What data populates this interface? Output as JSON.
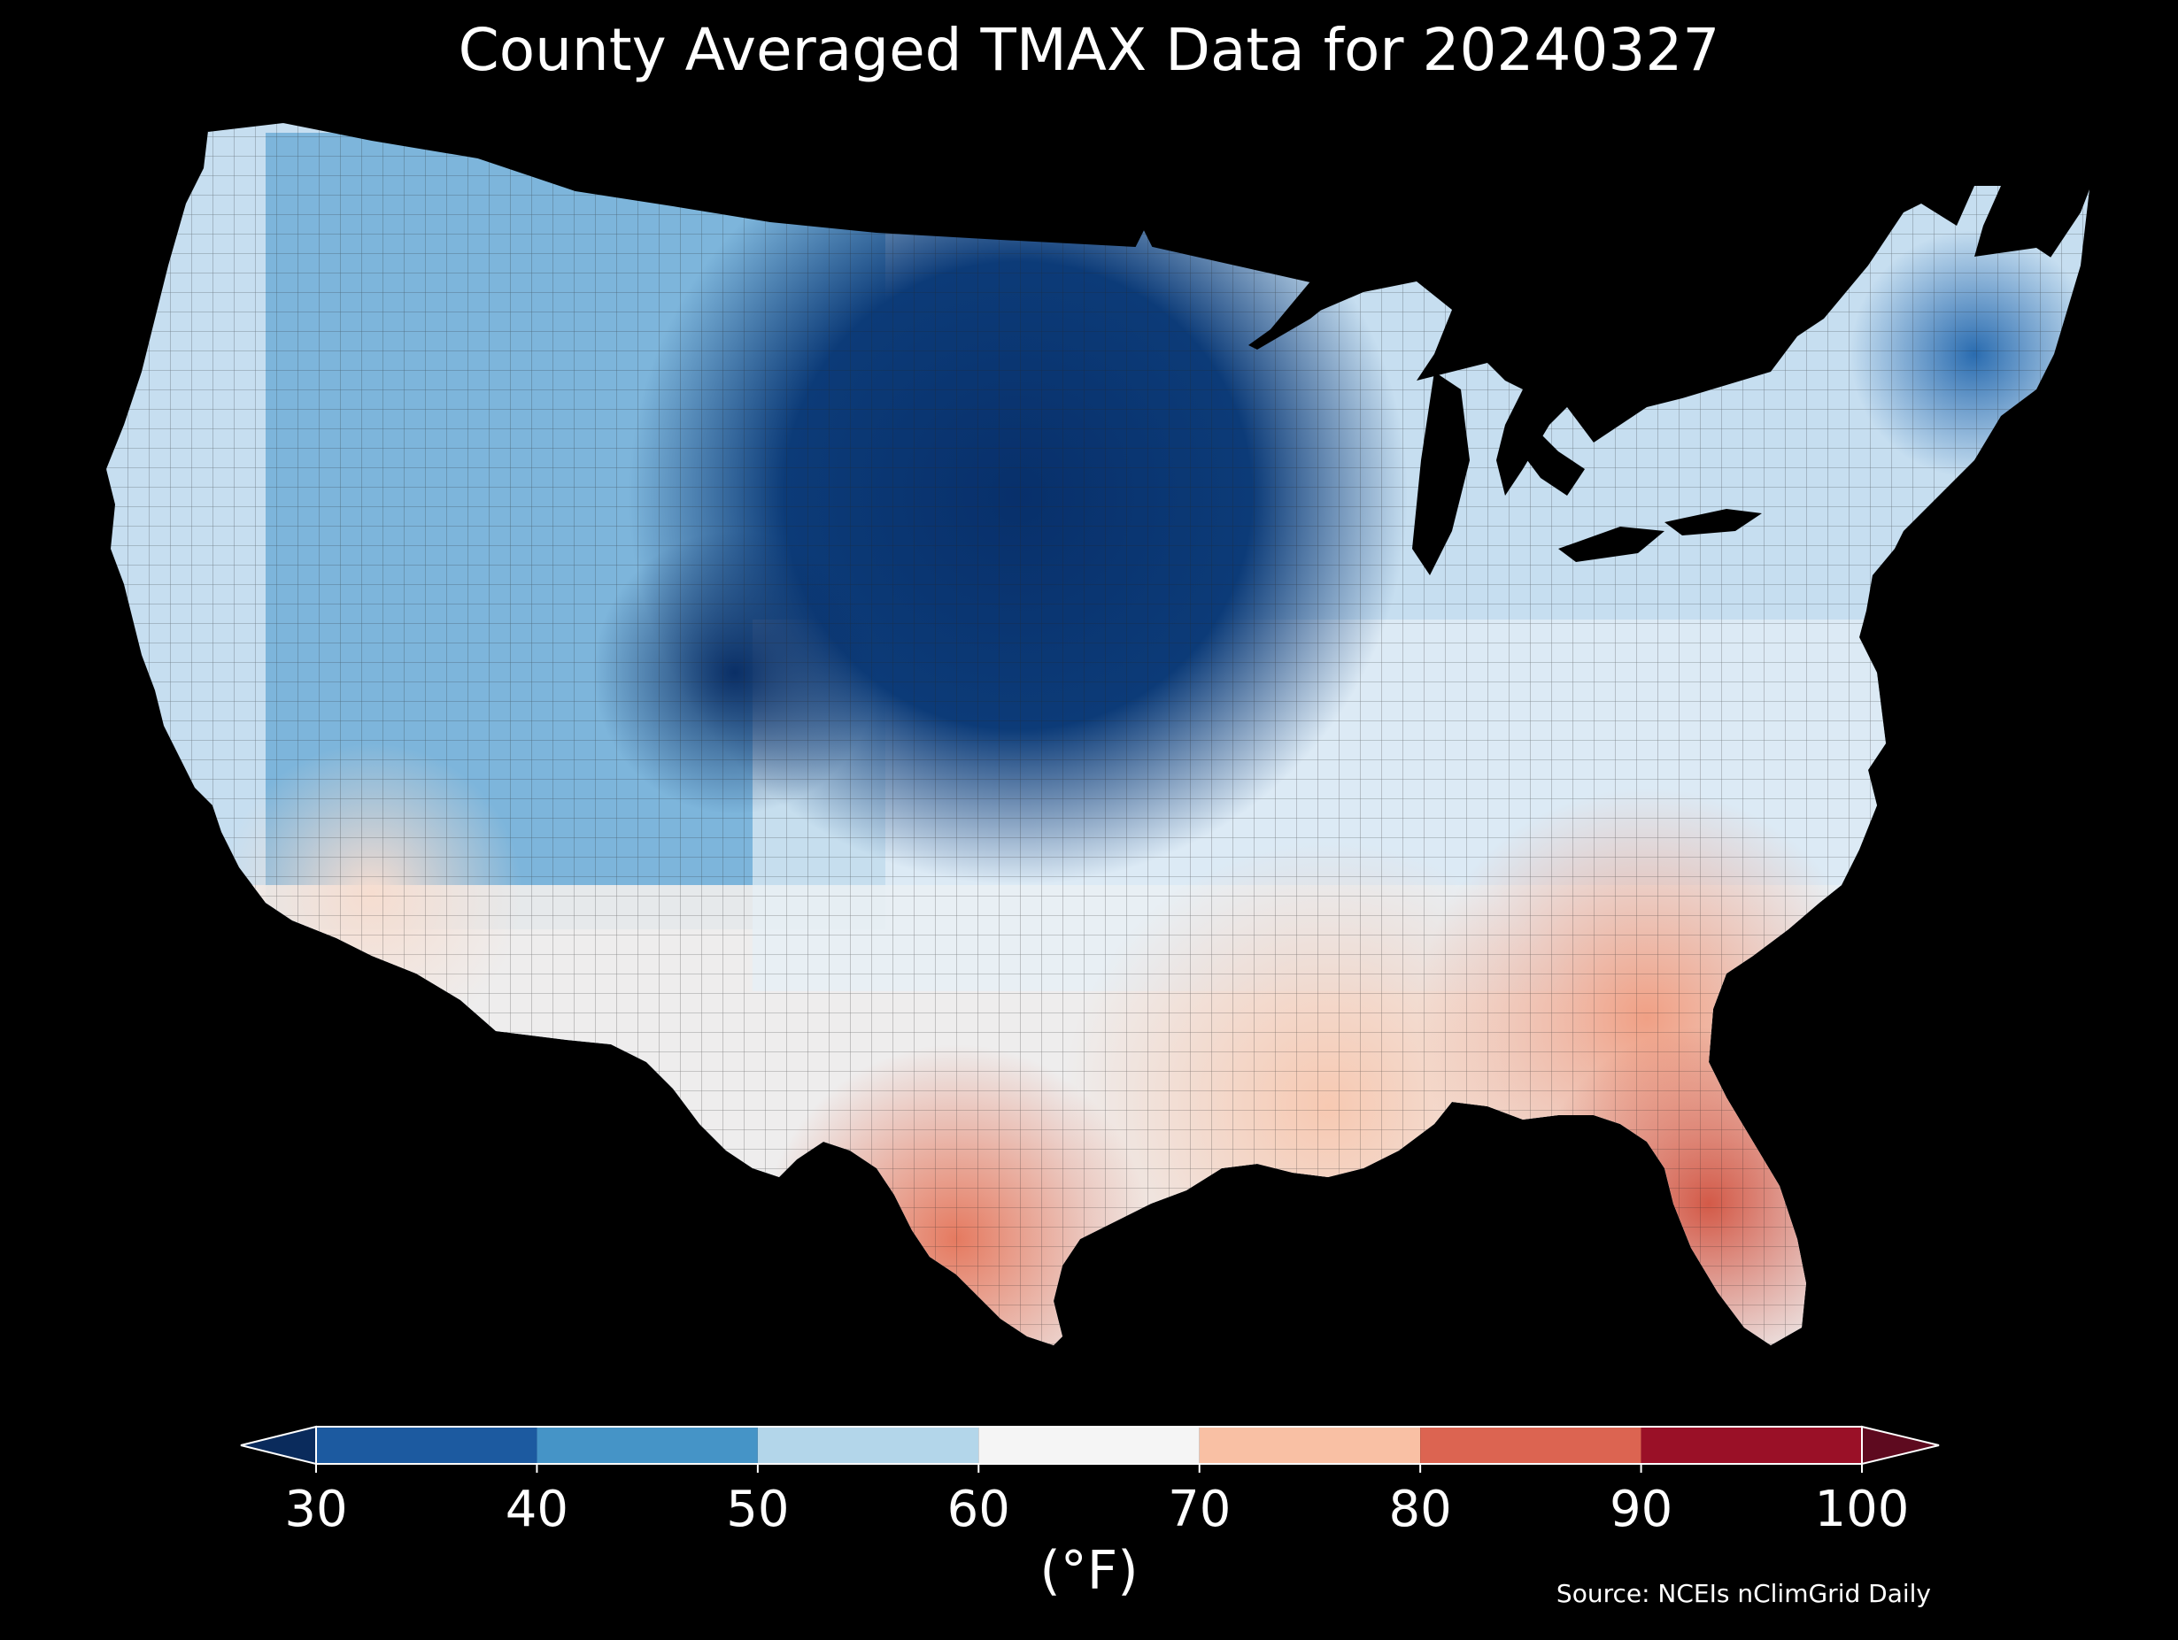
{
  "title": "County Averaged TMAX Data for 20240327",
  "colorbar": {
    "label": "(°F)",
    "ticks": [
      "30",
      "40",
      "50",
      "60",
      "70",
      "80",
      "90",
      "100"
    ],
    "bins": [
      {
        "from": 30,
        "to": 40,
        "color": "#1c5aa0"
      },
      {
        "from": 40,
        "to": 50,
        "color": "#4594c7"
      },
      {
        "from": 50,
        "to": 60,
        "color": "#b3d6ea"
      },
      {
        "from": 60,
        "to": 70,
        "color": "#f5f5f5"
      },
      {
        "from": 70,
        "to": 80,
        "color": "#f9c0a4"
      },
      {
        "from": 80,
        "to": 90,
        "color": "#dc6451"
      },
      {
        "from": 90,
        "to": 100,
        "color": "#9a1027"
      }
    ],
    "under_color": "#0a2b5c",
    "over_color": "#5e0a1f"
  },
  "source": "Source: NCEIs nClimGrid Daily",
  "map_regions": [
    {
      "name": "pacific-northwest",
      "approx_tmax_f": 55
    },
    {
      "name": "california-coast",
      "approx_tmax_f": 62
    },
    {
      "name": "desert-southwest",
      "approx_tmax_f": 68
    },
    {
      "name": "great-basin-rockies",
      "approx_tmax_f": 47
    },
    {
      "name": "colorado-rockies",
      "approx_tmax_f": 33
    },
    {
      "name": "northern-plains-upper-midwest",
      "approx_tmax_f": 33
    },
    {
      "name": "central-plains",
      "approx_tmax_f": 45
    },
    {
      "name": "great-lakes-ohio-valley",
      "approx_tmax_f": 57
    },
    {
      "name": "northeast",
      "approx_tmax_f": 52
    },
    {
      "name": "new-england",
      "approx_tmax_f": 44
    },
    {
      "name": "southern-plains",
      "approx_tmax_f": 62
    },
    {
      "name": "south-texas",
      "approx_tmax_f": 77
    },
    {
      "name": "gulf-coast",
      "approx_tmax_f": 72
    },
    {
      "name": "southeast",
      "approx_tmax_f": 75
    },
    {
      "name": "florida",
      "approx_tmax_f": 84
    }
  ]
}
